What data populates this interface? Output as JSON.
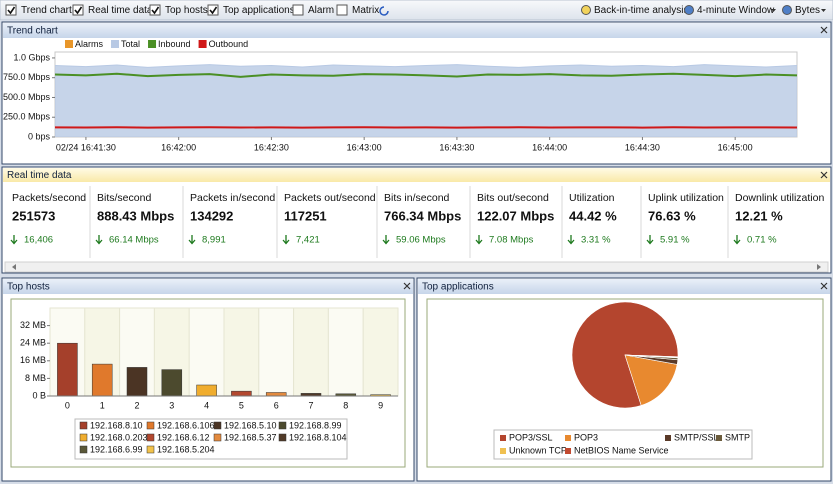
{
  "toolbar": {
    "checkboxes": [
      {
        "label": "Trend chart",
        "checked": true
      },
      {
        "label": "Real time data",
        "checked": true
      },
      {
        "label": "Top hosts",
        "checked": true
      },
      {
        "label": "Top applications",
        "checked": true
      },
      {
        "label": "Alarm",
        "checked": false
      },
      {
        "label": "Matrix",
        "checked": false
      }
    ],
    "tools": [
      "Back-in-time analysis",
      "4-minute Window",
      "Bytes"
    ]
  },
  "realtime": {
    "title": "Real time data",
    "cards": [
      {
        "label": "Packets/second",
        "value": "251573",
        "change": "16,406"
      },
      {
        "label": "Bits/second",
        "value": "888.43 Mbps",
        "change": "66.14 Mbps"
      },
      {
        "label": "Packets in/second",
        "value": "134292",
        "change": "8,991"
      },
      {
        "label": "Packets out/second",
        "value": "117251",
        "change": "7,421"
      },
      {
        "label": "Bits in/second",
        "value": "766.34 Mbps",
        "change": "59.06 Mbps"
      },
      {
        "label": "Bits out/second",
        "value": "122.07 Mbps",
        "change": "7.08 Mbps"
      },
      {
        "label": "Utilization",
        "value": "44.42 %",
        "change": "3.31 %"
      },
      {
        "label": "Uplink utilization",
        "value": "76.63 %",
        "change": "5.91 %"
      },
      {
        "label": "Downlink utilization",
        "value": "12.21 %",
        "change": "0.71 %"
      }
    ]
  },
  "chart_data": [
    {
      "type": "line",
      "title": "Trend chart",
      "x": [
        "16:41:20",
        "16:41:30",
        "16:41:40",
        "16:41:50",
        "16:42:00",
        "16:42:10",
        "16:42:20",
        "16:42:30",
        "16:42:40",
        "16:42:50",
        "16:43:00",
        "16:43:10",
        "16:43:20",
        "16:43:30",
        "16:43:40",
        "16:43:50",
        "16:44:00",
        "16:44:10",
        "16:44:20",
        "16:44:30",
        "16:44:40",
        "16:44:50",
        "16:45:00",
        "16:45:10",
        "16:45:20"
      ],
      "xticks": [
        {
          "value": "16:41:30",
          "label": "02/24 16:41:30"
        },
        "16:42:00",
        "16:42:30",
        "16:43:00",
        "16:43:30",
        "16:44:00",
        "16:44:30",
        "16:45:00"
      ],
      "ylim": [
        0,
        1075
      ],
      "yticks": [
        {
          "value": 0,
          "label": "0 bps"
        },
        {
          "value": 250,
          "label": "250.0 Mbps"
        },
        {
          "value": 500,
          "label": "500.0 Mbps"
        },
        {
          "value": 750,
          "label": "750.0 Mbps"
        },
        {
          "value": 1000,
          "label": "1.0 Gbps"
        }
      ],
      "series": [
        {
          "name": "Alarms",
          "color": "#e8962a",
          "values": [
            null,
            null,
            null,
            null,
            null,
            null,
            null,
            null,
            null,
            null,
            null,
            null,
            null,
            null,
            null,
            null,
            null,
            null,
            null,
            null,
            null,
            null,
            null,
            null,
            null
          ]
        },
        {
          "name": "Total",
          "color": "#b8c9e4",
          "area": true,
          "values": [
            905,
            890,
            910,
            880,
            900,
            915,
            895,
            905,
            885,
            910,
            900,
            890,
            905,
            915,
            895,
            880,
            900,
            910,
            895,
            905,
            890,
            915,
            900,
            885,
            905
          ]
        },
        {
          "name": "Inbound",
          "color": "#4a8f24",
          "values": [
            790,
            780,
            800,
            770,
            785,
            795,
            760,
            790,
            780,
            775,
            795,
            790,
            780,
            765,
            790,
            785,
            795,
            780,
            775,
            790,
            800,
            785,
            770,
            790,
            780
          ]
        },
        {
          "name": "Outbound",
          "color": "#d01818",
          "values": [
            122,
            120,
            123,
            118,
            121,
            124,
            120,
            122,
            119,
            121,
            123,
            120,
            122,
            118,
            121,
            123,
            120,
            122,
            121,
            119,
            123,
            120,
            122,
            121,
            120
          ]
        }
      ]
    },
    {
      "type": "bar",
      "title": "Top hosts",
      "categories": [
        "0",
        "1",
        "2",
        "3",
        "4",
        "5",
        "6",
        "7",
        "8",
        "9"
      ],
      "values": [
        24,
        14.5,
        13,
        12,
        5,
        2.2,
        1.6,
        1.2,
        1,
        0.6
      ],
      "colors": [
        "#a5402b",
        "#e0792c",
        "#4b3424",
        "#4c4a2e",
        "#f0ad2e",
        "#b3482f",
        "#e38a3e",
        "#513a28",
        "#5a5838",
        "#f2c24a"
      ],
      "hosts": [
        "192.168.8.10",
        "192.168.6.106",
        "192.168.5.10",
        "192.168.8.99",
        "192.168.0.203",
        "192.168.6.12",
        "192.168.5.37",
        "192.168.8.104",
        "192.168.6.99",
        "192.168.5.204"
      ],
      "ylim": [
        0,
        40
      ],
      "yticks": [
        {
          "value": 0,
          "label": "0 B"
        },
        {
          "value": 8,
          "label": "8 MB"
        },
        {
          "value": 16,
          "label": "16 MB"
        },
        {
          "value": 24,
          "label": "24 MB"
        },
        {
          "value": 32,
          "label": "32 MB"
        }
      ]
    },
    {
      "type": "pie",
      "title": "Top applications",
      "labels": [
        "POP3/SSL",
        "POP3",
        "SMTP/SSL",
        "SMTP",
        "Unknown TCP",
        "NetBIOS Name Service"
      ],
      "values": [
        80.5,
        17.2,
        1.4,
        0.6,
        0.2,
        0.1
      ],
      "colors": [
        "#b4452e",
        "#e8892f",
        "#5a3a28",
        "#6b5c3c",
        "#f0c050",
        "#c24a30"
      ]
    }
  ]
}
